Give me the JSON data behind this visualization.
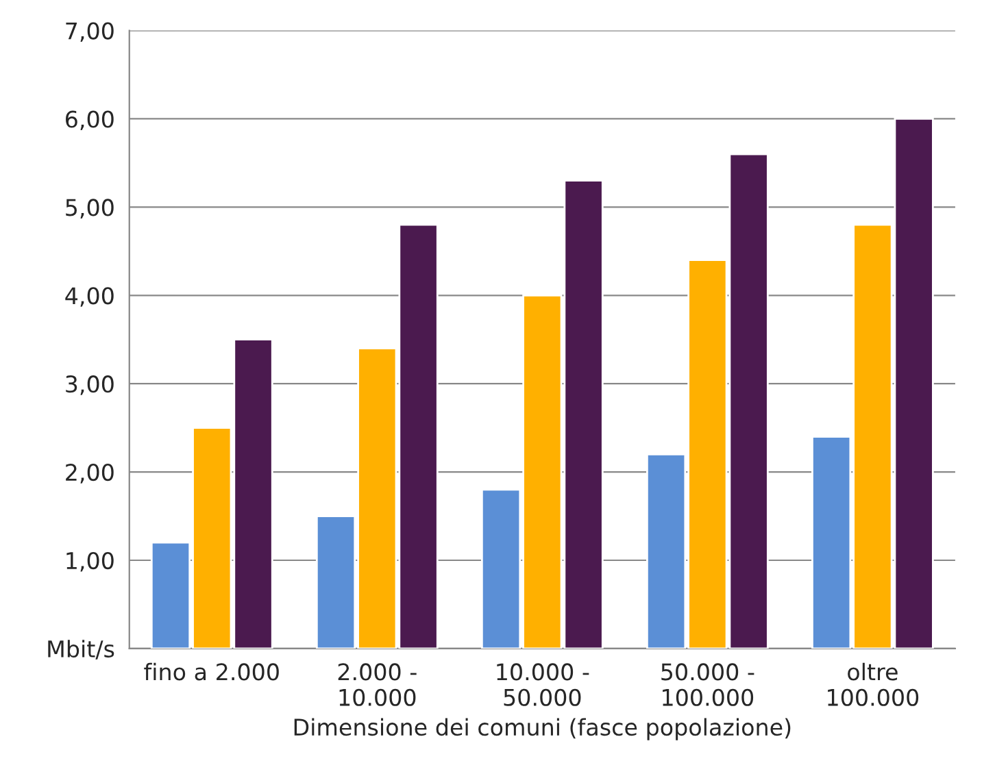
{
  "chart_data": {
    "type": "bar",
    "xlabel": "Dimensione dei comuni (fasce popolazione)",
    "categories": [
      "fino a 2.000",
      "2.000 -\n10.000",
      "10.000 -\n50.000",
      "50.000 -\n100.000",
      "oltre\n100.000"
    ],
    "series": [
      {
        "color": "#5b8fd6",
        "values": [
          1.2,
          1.5,
          1.8,
          2.2,
          2.4
        ]
      },
      {
        "color": "#ffb000",
        "values": [
          2.5,
          3.4,
          4.0,
          4.4,
          4.8
        ]
      },
      {
        "color": "#4b1a4f",
        "values": [
          3.5,
          4.8,
          5.3,
          5.6,
          6.0
        ]
      }
    ],
    "ylim": [
      0,
      7
    ],
    "yticks": [
      {
        "value": 0,
        "label": "Mbit/s"
      },
      {
        "value": 1,
        "label": "1,00"
      },
      {
        "value": 2,
        "label": "2,00"
      },
      {
        "value": 3,
        "label": "3,00"
      },
      {
        "value": 4,
        "label": "4,00"
      },
      {
        "value": 5,
        "label": "5,00"
      },
      {
        "value": 6,
        "label": "6,00"
      },
      {
        "value": 7,
        "label": "7,00"
      }
    ],
    "grid": "y"
  }
}
